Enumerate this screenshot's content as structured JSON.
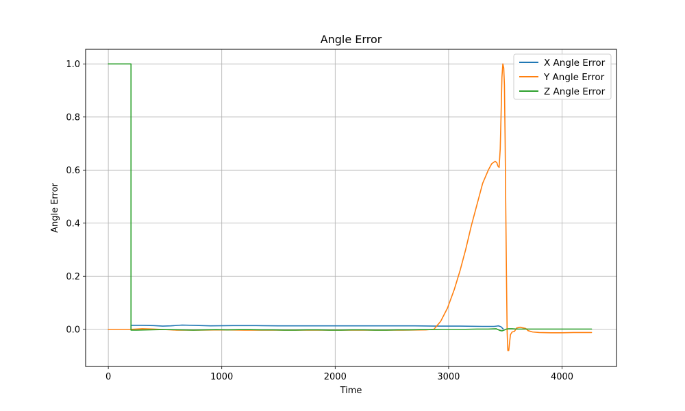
{
  "chart_data": {
    "type": "line",
    "title": "Angle Error",
    "xlabel": "Time",
    "ylabel": "Angle Error",
    "xlim": [
      -200,
      4480
    ],
    "ylim": [
      -0.14,
      1.055
    ],
    "xticks": [
      0,
      1000,
      2000,
      3000,
      4000
    ],
    "xtick_labels": [
      "0",
      "1000",
      "2000",
      "3000",
      "4000"
    ],
    "yticks": [
      0.0,
      0.2,
      0.4,
      0.6,
      0.8,
      1.0
    ],
    "ytick_labels": [
      "0.0",
      "0.2",
      "0.4",
      "0.6",
      "0.8",
      "1.0"
    ],
    "grid": true,
    "legend_position": "top-right",
    "series": [
      {
        "name": "X Angle Error",
        "color": "#1f77b4",
        "x": [
          0,
          200,
          200,
          210,
          300,
          400,
          480,
          550,
          650,
          750,
          900,
          1100,
          1300,
          1500,
          1700,
          1900,
          2100,
          2300,
          2500,
          2700,
          2900,
          3100,
          3300,
          3400,
          3420,
          3440,
          3460,
          3480
        ],
        "y": [
          0,
          0,
          0.015,
          0.015,
          0.015,
          0.014,
          0.012,
          0.013,
          0.016,
          0.015,
          0.013,
          0.014,
          0.014,
          0.013,
          0.013,
          0.013,
          0.013,
          0.013,
          0.013,
          0.013,
          0.012,
          0.012,
          0.011,
          0.011,
          0.012,
          0.013,
          0.01,
          0.002
        ]
      },
      {
        "name": "Y Angle Error",
        "color": "#ff7f0e",
        "x": [
          0,
          200,
          300,
          400,
          600,
          800,
          1000,
          1200,
          1400,
          1600,
          1800,
          2000,
          2200,
          2400,
          2600,
          2800,
          2870,
          2930,
          2990,
          3050,
          3100,
          3150,
          3200,
          3250,
          3300,
          3350,
          3380,
          3410,
          3425,
          3435,
          3445,
          3455,
          3462,
          3470,
          3478,
          3486,
          3492,
          3498,
          3504,
          3510,
          3516,
          3522,
          3530,
          3545,
          3560,
          3580,
          3600,
          3630,
          3660,
          3680,
          3700,
          3740,
          3800,
          3900,
          4000,
          4100,
          4260
        ],
        "y": [
          0,
          0,
          0.002,
          0.001,
          -0.003,
          -0.003,
          -0.002,
          -0.003,
          -0.003,
          -0.003,
          -0.003,
          -0.003,
          -0.003,
          -0.003,
          -0.003,
          -0.002,
          0.0,
          0.03,
          0.08,
          0.15,
          0.22,
          0.3,
          0.39,
          0.47,
          0.55,
          0.6,
          0.624,
          0.633,
          0.628,
          0.615,
          0.61,
          0.68,
          0.8,
          0.95,
          1.0,
          0.985,
          0.92,
          0.72,
          0.45,
          0.2,
          -0.01,
          -0.08,
          -0.08,
          -0.02,
          -0.01,
          -0.008,
          0.005,
          0.008,
          0.005,
          0.003,
          -0.005,
          -0.01,
          -0.012,
          -0.013,
          -0.013,
          -0.012,
          -0.012
        ]
      },
      {
        "name": "Z Angle Error",
        "color": "#2ca02c",
        "x": [
          0,
          200,
          200,
          250,
          350,
          450,
          550,
          650,
          750,
          850,
          950,
          1050,
          1150,
          1250,
          1350,
          1450,
          1550,
          1650,
          1750,
          1850,
          1950,
          2050,
          2150,
          2250,
          2350,
          2450,
          2550,
          2650,
          2750,
          2850,
          2950,
          3050,
          3150,
          3250,
          3350,
          3420,
          3450,
          3470,
          3490,
          3510,
          3530,
          3560,
          3600,
          3700,
          3800,
          3900,
          4000,
          4100,
          4260
        ],
        "y": [
          1.0,
          1.0,
          -0.003,
          -0.003,
          -0.002,
          -0.001,
          -0.001,
          -0.002,
          -0.003,
          -0.002,
          -0.001,
          -0.002,
          -0.001,
          -0.001,
          -0.002,
          -0.002,
          -0.003,
          -0.003,
          -0.002,
          -0.002,
          -0.003,
          -0.003,
          -0.002,
          -0.002,
          -0.003,
          -0.003,
          -0.002,
          -0.002,
          -0.001,
          -0.001,
          0.0,
          0.0,
          0.0,
          0.001,
          0.001,
          0.002,
          -0.004,
          -0.006,
          -0.003,
          0.001,
          0.002,
          0.002,
          0.001,
          0.001,
          0.001,
          0.001,
          0.001,
          0.001,
          0.001
        ]
      }
    ]
  }
}
